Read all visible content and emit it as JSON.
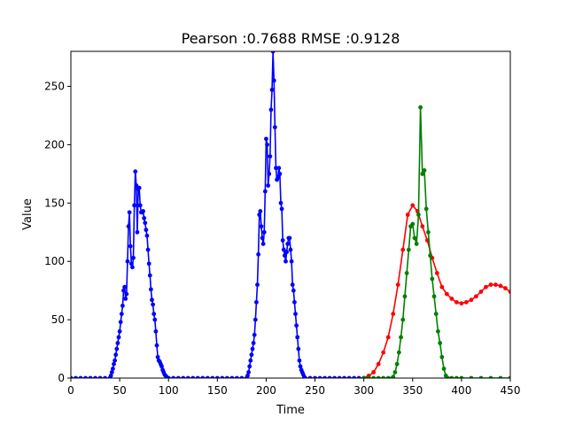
{
  "chart_data": {
    "type": "line",
    "title": "Pearson :0.7688  RMSE :0.9128",
    "xlabel": "Time",
    "ylabel": "Value",
    "xlim": [
      0,
      450
    ],
    "ylim": [
      0,
      280
    ],
    "xticks": [
      0,
      50,
      100,
      150,
      200,
      250,
      300,
      350,
      400,
      450
    ],
    "yticks": [
      0,
      50,
      100,
      150,
      200,
      250
    ],
    "grid": false,
    "legend": "none",
    "series": [
      {
        "color": "#0000ff",
        "marker": "dot",
        "points": [
          [
            0,
            0
          ],
          [
            5,
            0
          ],
          [
            10,
            0
          ],
          [
            15,
            0
          ],
          [
            20,
            0
          ],
          [
            25,
            0
          ],
          [
            30,
            0
          ],
          [
            35,
            0
          ],
          [
            40,
            0
          ],
          [
            41,
            2
          ],
          [
            42,
            5
          ],
          [
            43,
            8
          ],
          [
            44,
            12
          ],
          [
            45,
            15
          ],
          [
            46,
            20
          ],
          [
            47,
            25
          ],
          [
            48,
            30
          ],
          [
            49,
            35
          ],
          [
            50,
            40
          ],
          [
            51,
            48
          ],
          [
            52,
            55
          ],
          [
            53,
            62
          ],
          [
            54,
            75
          ],
          [
            55,
            78
          ],
          [
            56,
            68
          ],
          [
            57,
            72
          ],
          [
            58,
            100
          ],
          [
            59,
            130
          ],
          [
            60,
            142
          ],
          [
            61,
            113
          ],
          [
            62,
            98
          ],
          [
            63,
            95
          ],
          [
            64,
            103
          ],
          [
            65,
            148
          ],
          [
            66,
            177
          ],
          [
            67,
            165
          ],
          [
            68,
            125
          ],
          [
            69,
            162
          ],
          [
            70,
            163
          ],
          [
            71,
            148
          ],
          [
            72,
            142
          ],
          [
            73,
            142
          ],
          [
            74,
            143
          ],
          [
            75,
            137
          ],
          [
            76,
            133
          ],
          [
            77,
            127
          ],
          [
            78,
            122
          ],
          [
            79,
            110
          ],
          [
            80,
            98
          ],
          [
            81,
            88
          ],
          [
            82,
            76
          ],
          [
            83,
            67
          ],
          [
            84,
            63
          ],
          [
            85,
            55
          ],
          [
            86,
            50
          ],
          [
            87,
            40
          ],
          [
            88,
            28
          ],
          [
            89,
            18
          ],
          [
            90,
            15
          ],
          [
            91,
            14
          ],
          [
            92,
            12
          ],
          [
            93,
            10
          ],
          [
            94,
            7
          ],
          [
            95,
            5
          ],
          [
            96,
            3
          ],
          [
            97,
            2
          ],
          [
            98,
            1
          ],
          [
            99,
            0
          ],
          [
            100,
            0
          ],
          [
            105,
            0
          ],
          [
            110,
            0
          ],
          [
            115,
            0
          ],
          [
            120,
            0
          ],
          [
            125,
            0
          ],
          [
            130,
            0
          ],
          [
            135,
            0
          ],
          [
            140,
            0
          ],
          [
            145,
            0
          ],
          [
            150,
            0
          ],
          [
            155,
            0
          ],
          [
            160,
            0
          ],
          [
            165,
            0
          ],
          [
            170,
            0
          ],
          [
            175,
            0
          ],
          [
            180,
            0
          ],
          [
            181,
            2
          ],
          [
            182,
            5
          ],
          [
            183,
            10
          ],
          [
            184,
            15
          ],
          [
            185,
            20
          ],
          [
            186,
            25
          ],
          [
            187,
            30
          ],
          [
            188,
            37
          ],
          [
            189,
            50
          ],
          [
            190,
            65
          ],
          [
            191,
            80
          ],
          [
            192,
            106
          ],
          [
            193,
            140
          ],
          [
            194,
            143
          ],
          [
            195,
            130
          ],
          [
            196,
            120
          ],
          [
            197,
            115
          ],
          [
            198,
            125
          ],
          [
            199,
            160
          ],
          [
            200,
            205
          ],
          [
            201,
            200
          ],
          [
            202,
            165
          ],
          [
            203,
            175
          ],
          [
            204,
            190
          ],
          [
            205,
            230
          ],
          [
            206,
            247
          ],
          [
            207,
            280
          ],
          [
            208,
            255
          ],
          [
            209,
            215
          ],
          [
            210,
            180
          ],
          [
            211,
            170
          ],
          [
            212,
            172
          ],
          [
            213,
            180
          ],
          [
            214,
            175
          ],
          [
            215,
            150
          ],
          [
            216,
            145
          ],
          [
            217,
            118
          ],
          [
            218,
            110
          ],
          [
            219,
            105
          ],
          [
            220,
            100
          ],
          [
            221,
            108
          ],
          [
            222,
            115
          ],
          [
            223,
            120
          ],
          [
            224,
            120
          ],
          [
            225,
            110
          ],
          [
            226,
            100
          ],
          [
            227,
            80
          ],
          [
            228,
            75
          ],
          [
            229,
            65
          ],
          [
            230,
            55
          ],
          [
            231,
            45
          ],
          [
            232,
            35
          ],
          [
            233,
            25
          ],
          [
            234,
            15
          ],
          [
            235,
            10
          ],
          [
            236,
            7
          ],
          [
            237,
            5
          ],
          [
            238,
            3
          ],
          [
            239,
            1
          ],
          [
            240,
            0
          ],
          [
            245,
            0
          ],
          [
            250,
            0
          ],
          [
            255,
            0
          ],
          [
            260,
            0
          ],
          [
            265,
            0
          ],
          [
            270,
            0
          ],
          [
            275,
            0
          ],
          [
            280,
            0
          ],
          [
            285,
            0
          ],
          [
            290,
            0
          ],
          [
            295,
            0
          ],
          [
            300,
            0
          ]
        ]
      },
      {
        "color": "#ff0000",
        "marker": "dot",
        "points": [
          [
            300,
            0
          ],
          [
            305,
            2
          ],
          [
            310,
            5
          ],
          [
            315,
            12
          ],
          [
            320,
            22
          ],
          [
            325,
            35
          ],
          [
            330,
            55
          ],
          [
            335,
            80
          ],
          [
            340,
            110
          ],
          [
            345,
            140
          ],
          [
            350,
            148
          ],
          [
            355,
            143
          ],
          [
            360,
            130
          ],
          [
            365,
            118
          ],
          [
            370,
            103
          ],
          [
            375,
            90
          ],
          [
            380,
            78
          ],
          [
            385,
            72
          ],
          [
            390,
            68
          ],
          [
            395,
            65
          ],
          [
            400,
            64
          ],
          [
            405,
            65
          ],
          [
            410,
            67
          ],
          [
            415,
            70
          ],
          [
            420,
            74
          ],
          [
            425,
            78
          ],
          [
            430,
            80
          ],
          [
            435,
            80
          ],
          [
            440,
            79
          ],
          [
            445,
            77
          ],
          [
            450,
            74
          ]
        ]
      },
      {
        "color": "#008000",
        "marker": "dot",
        "points": [
          [
            300,
            0
          ],
          [
            305,
            0
          ],
          [
            310,
            0
          ],
          [
            315,
            0
          ],
          [
            320,
            0
          ],
          [
            325,
            0
          ],
          [
            330,
            1
          ],
          [
            332,
            5
          ],
          [
            334,
            12
          ],
          [
            336,
            22
          ],
          [
            338,
            35
          ],
          [
            340,
            50
          ],
          [
            342,
            70
          ],
          [
            344,
            90
          ],
          [
            346,
            110
          ],
          [
            348,
            130
          ],
          [
            350,
            132
          ],
          [
            352,
            120
          ],
          [
            354,
            115
          ],
          [
            356,
            140
          ],
          [
            358,
            232
          ],
          [
            360,
            175
          ],
          [
            362,
            178
          ],
          [
            364,
            145
          ],
          [
            366,
            125
          ],
          [
            368,
            105
          ],
          [
            370,
            85
          ],
          [
            372,
            70
          ],
          [
            374,
            55
          ],
          [
            376,
            40
          ],
          [
            378,
            30
          ],
          [
            380,
            18
          ],
          [
            382,
            8
          ],
          [
            384,
            2
          ],
          [
            386,
            0
          ],
          [
            390,
            0
          ],
          [
            395,
            0
          ],
          [
            400,
            0
          ],
          [
            410,
            0
          ],
          [
            420,
            0
          ],
          [
            430,
            0
          ],
          [
            440,
            0
          ],
          [
            450,
            0
          ]
        ]
      }
    ]
  }
}
